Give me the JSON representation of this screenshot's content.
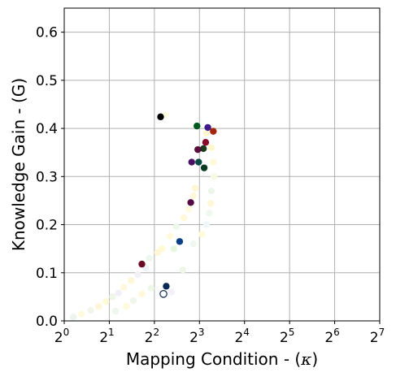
{
  "chart_data": {
    "type": "scatter",
    "title": "",
    "xlabel": "Mapping Condition - (",
    "xlabel_symbol": "κ",
    "xlabel_suffix": ")",
    "ylabel": "Knowledge Gain - (G)",
    "x_scale": "log2",
    "xlim": [
      1,
      128
    ],
    "ylim": [
      0.0,
      0.65
    ],
    "grid": true,
    "x_ticks": [
      {
        "value": 1,
        "base": "2",
        "exp": "0"
      },
      {
        "value": 2,
        "base": "2",
        "exp": "1"
      },
      {
        "value": 4,
        "base": "2",
        "exp": "2"
      },
      {
        "value": 8,
        "base": "2",
        "exp": "3"
      },
      {
        "value": 16,
        "base": "2",
        "exp": "4"
      },
      {
        "value": 32,
        "base": "2",
        "exp": "5"
      },
      {
        "value": 64,
        "base": "2",
        "exp": "6"
      },
      {
        "value": 128,
        "base": "2",
        "exp": "7"
      }
    ],
    "y_ticks": [
      {
        "value": 0.0,
        "label": "0.0"
      },
      {
        "value": 0.1,
        "label": "0.1"
      },
      {
        "value": 0.2,
        "label": "0.2"
      },
      {
        "value": 0.3,
        "label": "0.3"
      },
      {
        "value": 0.4,
        "label": "0.4"
      },
      {
        "value": 0.5,
        "label": "0.5"
      },
      {
        "value": 0.6,
        "label": "0.6"
      }
    ],
    "points": [
      {
        "x": 4.4,
        "y": 0.424,
        "color": "#000000"
      },
      {
        "x": 7.7,
        "y": 0.405,
        "color": "#005a1e"
      },
      {
        "x": 9.1,
        "y": 0.402,
        "color": "#3f1a8a"
      },
      {
        "x": 9.9,
        "y": 0.394,
        "color": "#a3260a"
      },
      {
        "x": 8.8,
        "y": 0.371,
        "color": "#8b0a28"
      },
      {
        "x": 8.5,
        "y": 0.358,
        "color": "#1b3b1b"
      },
      {
        "x": 7.8,
        "y": 0.356,
        "color": "#5a0c3a"
      },
      {
        "x": 7.1,
        "y": 0.33,
        "color": "#4a1064"
      },
      {
        "x": 7.9,
        "y": 0.33,
        "color": "#0a4a44"
      },
      {
        "x": 8.6,
        "y": 0.318,
        "color": "#0a3a22"
      },
      {
        "x": 7.0,
        "y": 0.246,
        "color": "#550a44"
      },
      {
        "x": 5.9,
        "y": 0.165,
        "color": "#0a3f88"
      },
      {
        "x": 3.3,
        "y": 0.118,
        "color": "#6a0a24"
      },
      {
        "x": 4.8,
        "y": 0.072,
        "color": "#0a2a55"
      },
      {
        "x": 4.6,
        "y": 0.056,
        "color": "#ffffff",
        "edge": "#0a2a55"
      },
      {
        "x": 4.75,
        "y": 0.428,
        "color": "#fefee0",
        "faint": true
      },
      {
        "x": 8.9,
        "y": 0.39,
        "color": "#fff6d0",
        "faint": true
      },
      {
        "x": 9.6,
        "y": 0.36,
        "color": "#fff7cc",
        "faint": true
      },
      {
        "x": 9.9,
        "y": 0.33,
        "color": "#fef9d6",
        "faint": true
      },
      {
        "x": 10.0,
        "y": 0.3,
        "color": "#f4fbe0",
        "faint": true
      },
      {
        "x": 9.6,
        "y": 0.27,
        "color": "#eef6ea",
        "faint": true
      },
      {
        "x": 9.5,
        "y": 0.244,
        "color": "#fff8d8",
        "faint": true
      },
      {
        "x": 9.3,
        "y": 0.224,
        "color": "#eef8ee",
        "faint": true
      },
      {
        "x": 8.9,
        "y": 0.2,
        "color": "#eef6f8",
        "faint": true
      },
      {
        "x": 8.3,
        "y": 0.18,
        "color": "#fffadc",
        "faint": true
      },
      {
        "x": 7.5,
        "y": 0.276,
        "color": "#fff7d2",
        "faint": true
      },
      {
        "x": 7.3,
        "y": 0.26,
        "color": "#fef8d8",
        "faint": true
      },
      {
        "x": 6.8,
        "y": 0.232,
        "color": "#fffbe0",
        "faint": true
      },
      {
        "x": 6.3,
        "y": 0.214,
        "color": "#fff9d8",
        "faint": true
      },
      {
        "x": 5.6,
        "y": 0.196,
        "color": "#eef8e8",
        "faint": true
      },
      {
        "x": 5.4,
        "y": 0.15,
        "color": "#e8f6e0",
        "faint": true
      },
      {
        "x": 5.1,
        "y": 0.176,
        "color": "#fffadc",
        "faint": true
      },
      {
        "x": 4.5,
        "y": 0.15,
        "color": "#fefad4",
        "faint": true
      },
      {
        "x": 4.2,
        "y": 0.142,
        "color": "#fff6d4",
        "faint": true
      },
      {
        "x": 3.7,
        "y": 0.13,
        "color": "#eef7ee",
        "faint": true
      },
      {
        "x": 3.5,
        "y": 0.11,
        "color": "#eef0f8",
        "faint": true
      },
      {
        "x": 3.1,
        "y": 0.096,
        "color": "#f4f0f8",
        "faint": true
      },
      {
        "x": 2.8,
        "y": 0.084,
        "color": "#fff6d8",
        "faint": true
      },
      {
        "x": 2.5,
        "y": 0.07,
        "color": "#fff8dc",
        "faint": true
      },
      {
        "x": 2.3,
        "y": 0.058,
        "color": "#f0f0f8",
        "faint": true
      },
      {
        "x": 2.1,
        "y": 0.05,
        "color": "#eef6ea",
        "faint": true
      },
      {
        "x": 1.9,
        "y": 0.04,
        "color": "#fffad6",
        "faint": true
      },
      {
        "x": 1.7,
        "y": 0.03,
        "color": "#fef6d8",
        "faint": true
      },
      {
        "x": 1.5,
        "y": 0.022,
        "color": "#f2f6ea",
        "faint": true
      },
      {
        "x": 1.3,
        "y": 0.014,
        "color": "#fffadf",
        "faint": true
      },
      {
        "x": 1.15,
        "y": 0.008,
        "color": "#eef4ee",
        "faint": true
      },
      {
        "x": 3.8,
        "y": 0.068,
        "color": "#eef8e8",
        "faint": true
      },
      {
        "x": 3.3,
        "y": 0.056,
        "color": "#fff8da",
        "faint": true
      },
      {
        "x": 2.9,
        "y": 0.042,
        "color": "#f0f6ec",
        "faint": true
      },
      {
        "x": 2.6,
        "y": 0.03,
        "color": "#fffadc",
        "faint": true
      },
      {
        "x": 2.2,
        "y": 0.02,
        "color": "#eef6ee",
        "faint": true
      },
      {
        "x": 5.2,
        "y": 0.06,
        "color": "#f4f0f8",
        "faint": true
      },
      {
        "x": 6.2,
        "y": 0.106,
        "color": "#f0f6e8",
        "faint": true
      },
      {
        "x": 7.3,
        "y": 0.16,
        "color": "#eef8ee",
        "faint": true
      }
    ]
  }
}
